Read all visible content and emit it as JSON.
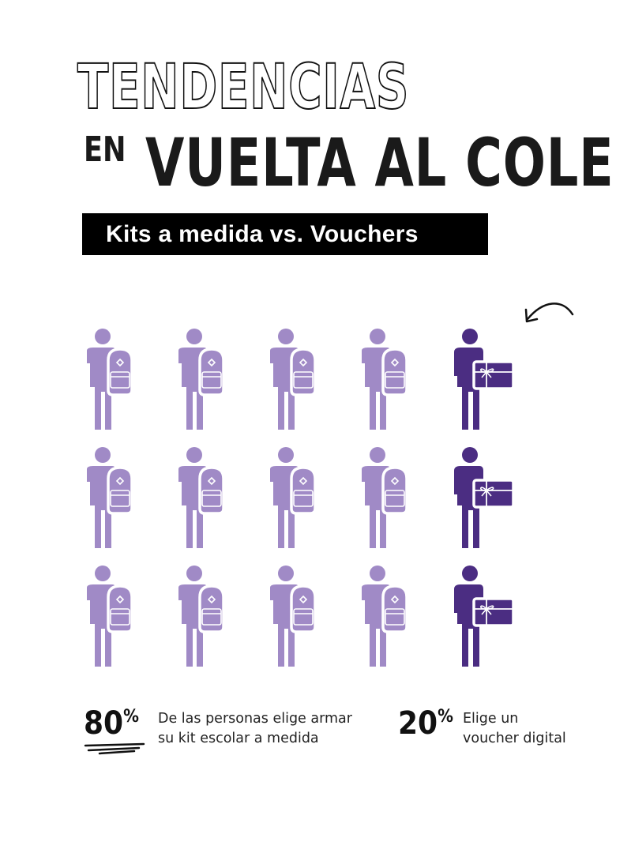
{
  "header": {
    "title_line1": "TENDENCIAS",
    "title_prefix": "EN",
    "title_line2": "VUELTA AL COLE",
    "subtitle": "Kits a medida vs. Vouchers"
  },
  "colors": {
    "kit": "#a08ac6",
    "voucher": "#4b2d82",
    "text": "#111111"
  },
  "icons": {
    "kit": "person-with-backpack-icon",
    "voucher": "person-with-gift-card-icon"
  },
  "chart_data": {
    "type": "pictogram",
    "rows": 3,
    "columns": 5,
    "series": [
      {
        "name": "Kit escolar a medida",
        "value": 80,
        "icons_per_row": 4
      },
      {
        "name": "Voucher digital",
        "value": 20,
        "icons_per_row": 1
      }
    ]
  },
  "stats": [
    {
      "value": "80",
      "unit": "%",
      "line1": "De las personas elige armar",
      "line2": "su kit escolar a medida"
    },
    {
      "value": "20",
      "unit": "%",
      "line1": "Elige un",
      "line2": "voucher digital"
    }
  ]
}
